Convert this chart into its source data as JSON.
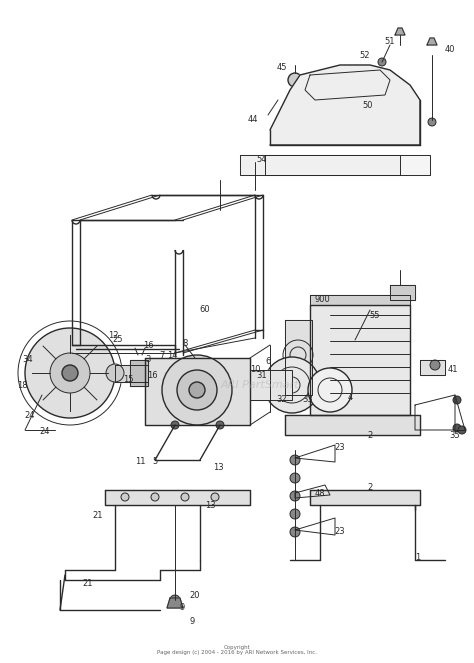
{
  "bg_color": "#ffffff",
  "line_color": "#2a2a2a",
  "label_fontsize": 6.0,
  "watermark_text": "ARI PartSmart",
  "watermark_color": "#b0b0b0",
  "copyright_text": "Copyright\nPage design (c) 2004 - 2016 by ARI Network Services, Inc.",
  "fig_width": 4.74,
  "fig_height": 6.63,
  "dpi": 100
}
